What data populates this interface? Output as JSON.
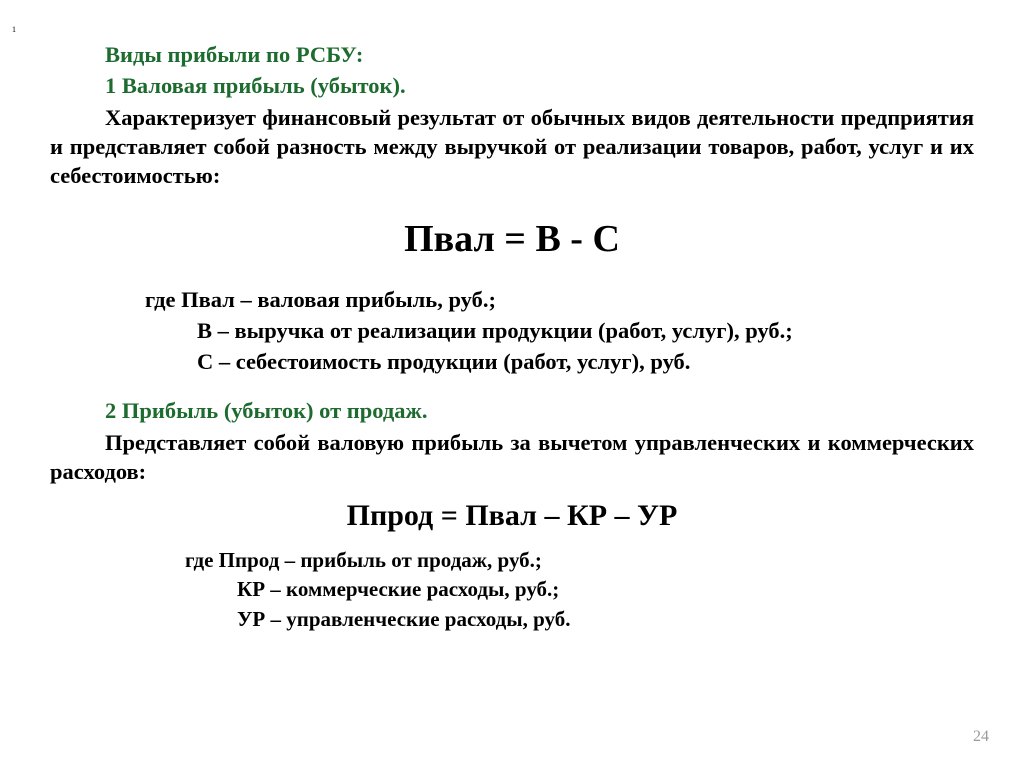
{
  "marker": "1",
  "title": "Виды прибыли по РСБУ:",
  "section1_title": "1 Валовая прибыль (убыток).",
  "section1_para": "Характеризует финансовый результат от обычных видов деятельности предприятия и представляет собой разность между выручкой от реализации товаров, работ, услуг и их себестоимостью:",
  "formula1": "Пвал =  В  -  С",
  "where1_a": "где Пвал – валовая прибыль, руб.;",
  "where1_b": "В – выручка от реализации продукции (работ, услуг), руб.;",
  "where1_c": "С – себестоимость продукции (работ, услуг), руб.",
  "section2_title": "2 Прибыль (убыток) от продаж.",
  "section2_para": "Представляет собой валовую прибыль за вычетом управленческих и коммерческих расходов:",
  "formula2": "Ппрод = Пвал – КР – УР",
  "where2_a": "где Ппрод – прибыль от продаж, руб.;",
  "where2_b": "КР – коммерческие расходы, руб.;",
  "where2_c": "УР – управленческие расходы, руб.",
  "page_number": "24",
  "colors": {
    "green": "#1e6b2f",
    "black": "#000000",
    "page_num": "#9a9a9a",
    "background": "#ffffff"
  },
  "typography": {
    "body_fontsize": 22.5,
    "formula1_fontsize": 38,
    "formula2_fontsize": 30,
    "where2_fontsize": 21,
    "font_family": "Times New Roman",
    "font_weight": "bold"
  }
}
